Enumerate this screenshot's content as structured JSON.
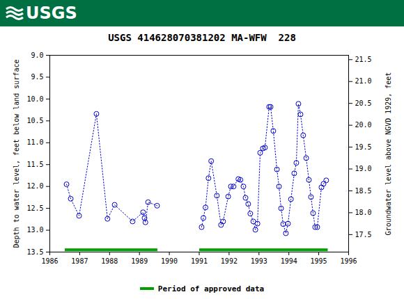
{
  "chart_data": {
    "type": "line",
    "logo_text": "USGS",
    "title": "USGS 414628070381202 MA-WFW  228",
    "y_label": "Depth to water level, feet below land surface",
    "y2_label": "Groundwater level above NGVD 1929, feet",
    "color": "#0000cc",
    "marker": "circle",
    "line_style": "dotted",
    "grid": false,
    "x": [
      1986.56,
      1986.7,
      1986.98,
      1987.56,
      1987.93,
      1988.17,
      1988.77,
      1989.12,
      1989.17,
      1989.2,
      1989.29,
      1989.59,
      1990.3,
      1991.08,
      1991.14,
      1991.21,
      1991.31,
      1991.4,
      1991.59,
      1991.73,
      1991.8,
      1991.97,
      1992.06,
      1992.15,
      1992.31,
      1992.38,
      1992.48,
      1992.55,
      1992.64,
      1992.71,
      1992.81,
      1992.88,
      1992.95,
      1993.04,
      1993.13,
      1993.2,
      1993.34,
      1993.39,
      1993.48,
      1993.6,
      1993.67,
      1993.74,
      1993.81,
      1993.9,
      1993.97,
      1994.07,
      1994.18,
      1994.25,
      1994.32,
      1994.39,
      1994.48,
      1994.58,
      1994.67,
      1994.74,
      1994.81,
      1994.88,
      1994.95,
      1995.09,
      1995.16,
      1995.25
    ],
    "values": [
      11.95,
      12.28,
      12.67,
      10.34,
      12.74,
      12.42,
      12.8,
      12.59,
      12.72,
      12.82,
      12.36,
      12.44,
      null,
      12.93,
      12.72,
      12.48,
      11.81,
      11.42,
      12.21,
      12.88,
      12.8,
      12.23,
      12.0,
      12.0,
      11.83,
      11.85,
      12.0,
      12.26,
      12.4,
      12.62,
      12.8,
      12.99,
      12.85,
      11.23,
      11.13,
      11.11,
      10.18,
      10.18,
      10.73,
      11.61,
      12.0,
      12.5,
      12.86,
      13.07,
      12.85,
      12.29,
      11.7,
      11.46,
      10.11,
      10.35,
      10.83,
      11.35,
      11.85,
      12.24,
      12.61,
      12.93,
      12.93,
      12.02,
      11.94,
      11.86
    ],
    "approved_periods": {
      "name": "Period of approved data",
      "color": "#00a000",
      "level": 13.45,
      "ranges": [
        [
          1986.5,
          1989.6
        ],
        [
          1991.0,
          1995.3
        ]
      ]
    },
    "xlim": [
      1986,
      1996
    ],
    "xticks": [
      1986,
      1987,
      1988,
      1989,
      1990,
      1991,
      1992,
      1993,
      1994,
      1995,
      1996
    ],
    "ylim": [
      13.5,
      9.0
    ],
    "yticks": [
      {
        "value": 9,
        "label": "9.0"
      },
      9.5,
      {
        "value": 10,
        "label": "10.0"
      },
      10.5,
      {
        "value": 11,
        "label": "11.0"
      },
      11.5,
      {
        "value": 12,
        "label": "12.0"
      },
      12.5,
      {
        "value": 13,
        "label": "13.0"
      },
      13.5
    ],
    "y2lim": [
      17.1,
      21.6
    ],
    "y2ticks": [
      17.5,
      {
        "value": 18,
        "label": "18.0"
      },
      18.5,
      {
        "value": 19,
        "label": "19.0"
      },
      19.5,
      {
        "value": 20,
        "label": "20.0"
      },
      20.5,
      {
        "value": 21,
        "label": "21.0"
      },
      21.5
    ]
  }
}
